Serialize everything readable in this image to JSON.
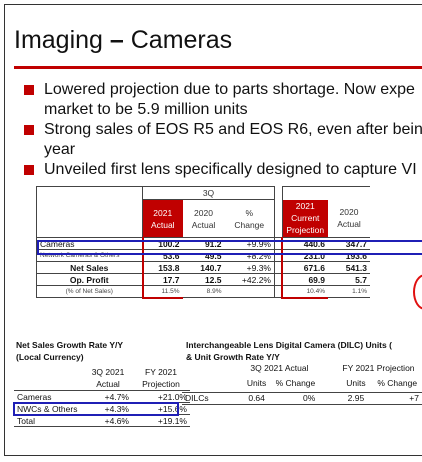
{
  "title": {
    "part1": "Imaging ",
    "dash": "–",
    "part2": " Cameras"
  },
  "bullets": [
    {
      "line1": "Lowered projection due to parts shortage. Now expe",
      "line2": "market to be 5.9 million units"
    },
    {
      "line1": "Strong sales of EOS R5 and EOS R6, even after being",
      "line2": "year"
    },
    {
      "line1": "Unveiled first lens specifically designed to capture VI",
      "line2": ""
    }
  ],
  "main_table": {
    "period_3q": "3Q",
    "col_2021_actual": [
      "2021",
      "Actual"
    ],
    "col_2020_actual": [
      "2020",
      "Actual"
    ],
    "col_pct_change": [
      "%",
      "Change"
    ],
    "col_2021_projection": [
      "2021",
      "Current",
      "Projection"
    ],
    "col_2020_actual_fy": [
      "2020",
      "Actual"
    ],
    "rows": [
      {
        "label": "Cameras",
        "a": "100.2",
        "b": "91.2",
        "c": "+9.9%",
        "d": "440.6",
        "e": "347.7"
      },
      {
        "label": "Network Cameras & Others",
        "a": "53.6",
        "b": "49.5",
        "c": "+8.2%",
        "d": "231.0",
        "e": "193.6"
      },
      {
        "label": "Net Sales",
        "a": "153.8",
        "b": "140.7",
        "c": "+9.3%",
        "d": "671.6",
        "e": "541.3"
      },
      {
        "label": "Op. Profit",
        "a": "17.7",
        "b": "12.5",
        "c": "+42.2%",
        "d": "69.9",
        "e": "5.7"
      },
      {
        "label": "(% of Net Sales)",
        "a": "11.5%",
        "b": "8.9%",
        "c": "",
        "d": "10.4%",
        "e": "1.1%"
      }
    ]
  },
  "growth": {
    "title1": "Net Sales Growth Rate Y/Y",
    "title2": "(Local Currency)",
    "col1": [
      "3Q 2021",
      "Actual"
    ],
    "col2": [
      "FY 2021",
      "Projection"
    ],
    "rows": [
      {
        "label": "Cameras",
        "a": "+4.7%",
        "b": "+21.0%"
      },
      {
        "label": "NWCs & Others",
        "a": "+4.3%",
        "b": "+15.6%"
      },
      {
        "label": "Total",
        "a": "+4.6%",
        "b": "+19.1%"
      }
    ]
  },
  "dilc": {
    "title1": "Interchangeable Lens Digital Camera (DILC) Units (",
    "title2": "& Unit Growth Rate Y/Y",
    "group1": "3Q 2021 Actual",
    "group2": "FY 2021 Projection",
    "units": "Units",
    "pct_change": "% Change",
    "pct_change2": "% Change",
    "units2": "Units",
    "row": {
      "label": "DILCs",
      "a": "0.64",
      "b": "0%",
      "c": "2.95",
      "d": "+7"
    }
  },
  "colors": {
    "accent_red": "#c00000",
    "highlight_blue": "#1f1fb5"
  }
}
